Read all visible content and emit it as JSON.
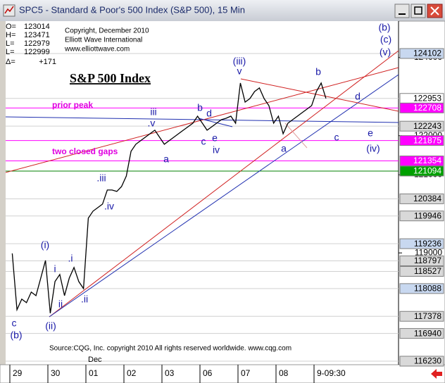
{
  "chart_data": {
    "type": "line",
    "window_title": "SPC5 - Standard & Poor's 500 Index (S&P 500), 15 Min",
    "title": "S&P 500 Index",
    "copyright": [
      "Copyright, December 2010",
      "Elliott Wave International",
      "www.elliottwave.com"
    ],
    "source": "Source:CQG, Inc. copyright 2010 All rights reserved worldwide. www.cqg.com",
    "ohlc": [
      {
        "label": "O=",
        "value": "123014"
      },
      {
        "label": "H=",
        "value": "123471"
      },
      {
        "label": "L=",
        "value": "122979"
      },
      {
        "label": "L=",
        "value": "122999"
      },
      {
        "label": "Δ=",
        "value": "+171"
      }
    ],
    "annotations": [
      "prior peak",
      "two closed gaps"
    ],
    "month_label": "Dec",
    "categories": [
      "29",
      null,
      null,
      null,
      null,
      null,
      null,
      null,
      "30",
      null,
      null,
      null,
      null,
      null,
      null,
      null,
      "01",
      null,
      null,
      null,
      null,
      null,
      null,
      null,
      "02",
      null,
      null,
      null,
      null,
      null,
      null,
      null,
      "03",
      null,
      null,
      null,
      null,
      null,
      null,
      null,
      "06",
      null,
      null,
      null,
      null,
      null,
      null,
      null,
      "07",
      null,
      null,
      null,
      null,
      null,
      null,
      null,
      "08",
      null,
      null,
      null,
      null,
      null,
      null,
      null,
      "9-09:30",
      null,
      null
    ],
    "values": [
      118987,
      117546,
      117817,
      117726,
      117997,
      117907,
      118357,
      118807,
      117456,
      118267,
      118447,
      117907,
      118357,
      118627,
      118267,
      118087,
      119888,
      120068,
      120158,
      120248,
      120608,
      120608,
      120572,
      120698,
      120968,
      121599,
      121779,
      121869,
      121959,
      122049,
      122139,
      121959,
      121779,
      121869,
      121959,
      122049,
      122139,
      122229,
      122319,
      122499,
      122319,
      122139,
      122229,
      122319,
      122409,
      122445,
      122499,
      122319,
      123346,
      122859,
      122949,
      123129,
      123220,
      122949,
      122769,
      122319,
      122499,
      122049,
      122319,
      122409,
      122499,
      122589,
      122679,
      122769,
      123129,
      123346,
      122953
    ],
    "color": "#000000",
    "ylim": [
      116140,
      124930
    ],
    "yticks": [
      124000,
      122000,
      121000,
      119000
    ],
    "price_labels": [
      {
        "value": 124102,
        "color": "#c8d8f0",
        "text_color": "#000000",
        "line": "#d0d0d0"
      },
      {
        "value": 122953,
        "color": "#ffffff",
        "text_color": "#000000",
        "line": "#d0d0d0"
      },
      {
        "value": 122708,
        "color": "#ff00ff",
        "text_color": "#ffffff",
        "line": "#ff00ff"
      },
      {
        "value": 122243,
        "color": "#d9d9d9",
        "text_color": "#000000",
        "line": "#d0d0d0"
      },
      {
        "value": 121875,
        "color": "#ff00ff",
        "text_color": "#ffffff",
        "line": "#ff00ff"
      },
      {
        "value": 121354,
        "color": "#ff00ff",
        "text_color": "#ffffff",
        "line": "#ff00ff"
      },
      {
        "value": 121094,
        "color": "#00a000",
        "text_color": "#ffffff",
        "line": "#008000"
      },
      {
        "value": 120384,
        "color": "#d9d9d9",
        "text_color": "#000000",
        "line": "#d0d0d0"
      },
      {
        "value": 119946,
        "color": "#d9d9d9",
        "text_color": "#000000",
        "line": "#d0d0d0"
      },
      {
        "value": 119236,
        "color": "#c8d8f0",
        "text_color": "#000000",
        "line": "#d0d0d0"
      },
      {
        "value": 118797,
        "color": "#d9d9d9",
        "text_color": "#000000",
        "line": "#d0d0d0"
      },
      {
        "value": 118527,
        "color": "#d9d9d9",
        "text_color": "#000000",
        "line": "#d0d0d0"
      },
      {
        "value": 118088,
        "color": "#c8d8f0",
        "text_color": "#000000",
        "line": "#d0d0d0"
      },
      {
        "value": 117378,
        "color": "#d9d9d9",
        "text_color": "#000000",
        "line": "#d0d0d0"
      },
      {
        "value": 116940,
        "color": "#d9d9d9",
        "text_color": "#000000",
        "line": "#d0d0d0"
      },
      {
        "value": 116230,
        "color": "#d9d9d9",
        "text_color": "#000000",
        "line": "#d0d0d0"
      }
    ],
    "wave_labels": [
      "c",
      "(b)",
      "(i)",
      "i",
      ".i",
      "ii",
      "(ii)",
      ".ii",
      ".iii",
      ".iv",
      "iii",
      ".v",
      "a",
      "b",
      "d",
      "c",
      "e",
      "iv",
      "(iii)",
      "v",
      "b",
      "d",
      "a",
      "c",
      "e",
      "(iv)",
      "(b)",
      "(c)",
      "(v)"
    ]
  }
}
